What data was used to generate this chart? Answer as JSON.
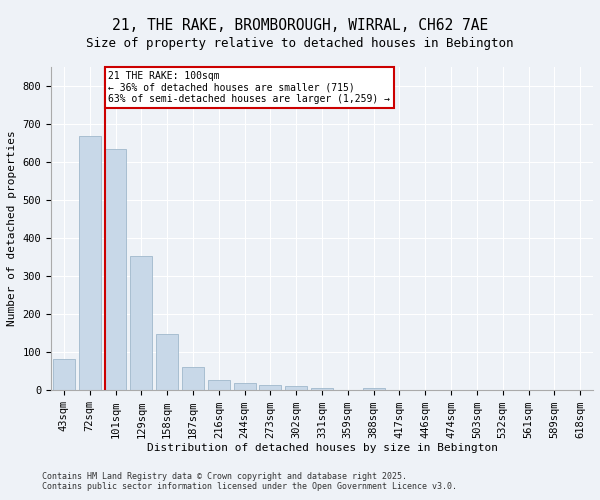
{
  "title1": "21, THE RAKE, BROMBOROUGH, WIRRAL, CH62 7AE",
  "title2": "Size of property relative to detached houses in Bebington",
  "xlabel": "Distribution of detached houses by size in Bebington",
  "ylabel": "Number of detached properties",
  "categories": [
    "43sqm",
    "72sqm",
    "101sqm",
    "129sqm",
    "158sqm",
    "187sqm",
    "216sqm",
    "244sqm",
    "273sqm",
    "302sqm",
    "331sqm",
    "359sqm",
    "388sqm",
    "417sqm",
    "446sqm",
    "474sqm",
    "503sqm",
    "532sqm",
    "561sqm",
    "589sqm",
    "618sqm"
  ],
  "values": [
    83,
    668,
    633,
    352,
    148,
    62,
    27,
    20,
    15,
    10,
    5,
    0,
    6,
    0,
    0,
    0,
    0,
    0,
    0,
    0,
    0
  ],
  "bar_color": "#c8d8e8",
  "bar_edge_color": "#a0b8cc",
  "highlight_line_index": 2,
  "highlight_label": "21 THE RAKE: 100sqm",
  "annotation_line1": "← 36% of detached houses are smaller (715)",
  "annotation_line2": "63% of semi-detached houses are larger (1,259) →",
  "box_color": "#cc0000",
  "ylim": [
    0,
    850
  ],
  "yticks": [
    0,
    100,
    200,
    300,
    400,
    500,
    600,
    700,
    800
  ],
  "title_fontsize": 10.5,
  "subtitle_fontsize": 9,
  "axis_fontsize": 8,
  "tick_fontsize": 7.5,
  "footnote1": "Contains HM Land Registry data © Crown copyright and database right 2025.",
  "footnote2": "Contains public sector information licensed under the Open Government Licence v3.0.",
  "background_color": "#eef2f7",
  "plot_bg_color": "#eef2f7",
  "grid_color": "#ffffff",
  "spine_color": "#aaaaaa"
}
